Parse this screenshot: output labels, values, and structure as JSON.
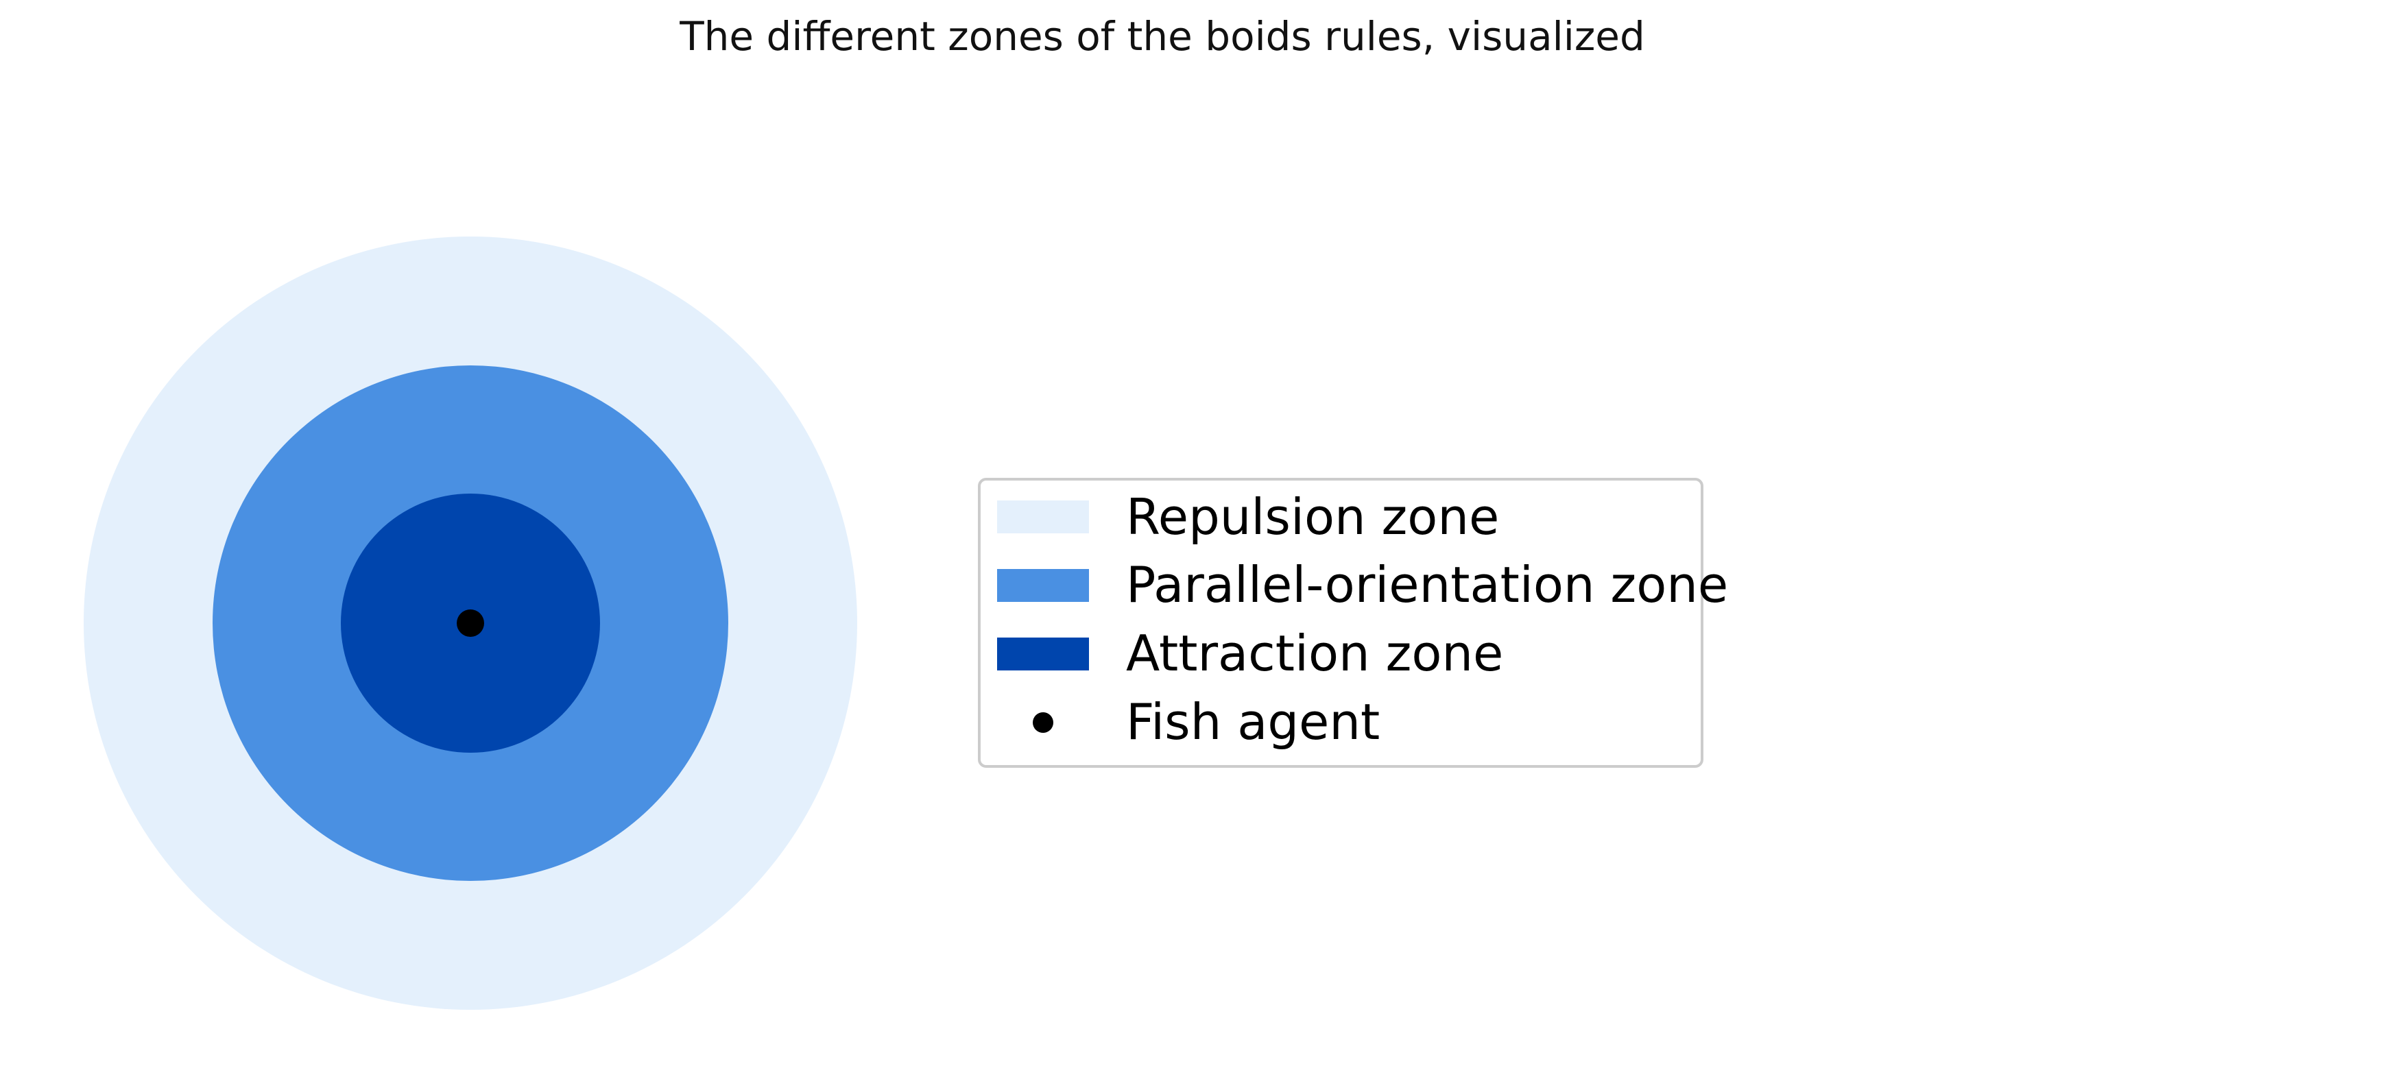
{
  "title": "The different zones of the boids rules, visualized",
  "zones": [
    {
      "name": "Repulsion zone",
      "color": "#e4f0fc",
      "relative_radius": 3
    },
    {
      "name": "Parallel-orientation zone",
      "color": "#4a90e2",
      "relative_radius": 2
    },
    {
      "name": "Attraction zone",
      "color": "#0045ad",
      "relative_radius": 1
    }
  ],
  "agent": {
    "name": "Fish agent",
    "color": "#000000"
  },
  "legend": {
    "placement": "right",
    "items": [
      {
        "label": "Repulsion zone",
        "marker": "patch",
        "color": "#e4f0fc"
      },
      {
        "label": "Parallel-orientation zone",
        "marker": "patch",
        "color": "#4a90e2"
      },
      {
        "label": "Attraction zone",
        "marker": "patch",
        "color": "#0045ad"
      },
      {
        "label": "Fish agent",
        "marker": "dot",
        "color": "#000000"
      }
    ]
  }
}
